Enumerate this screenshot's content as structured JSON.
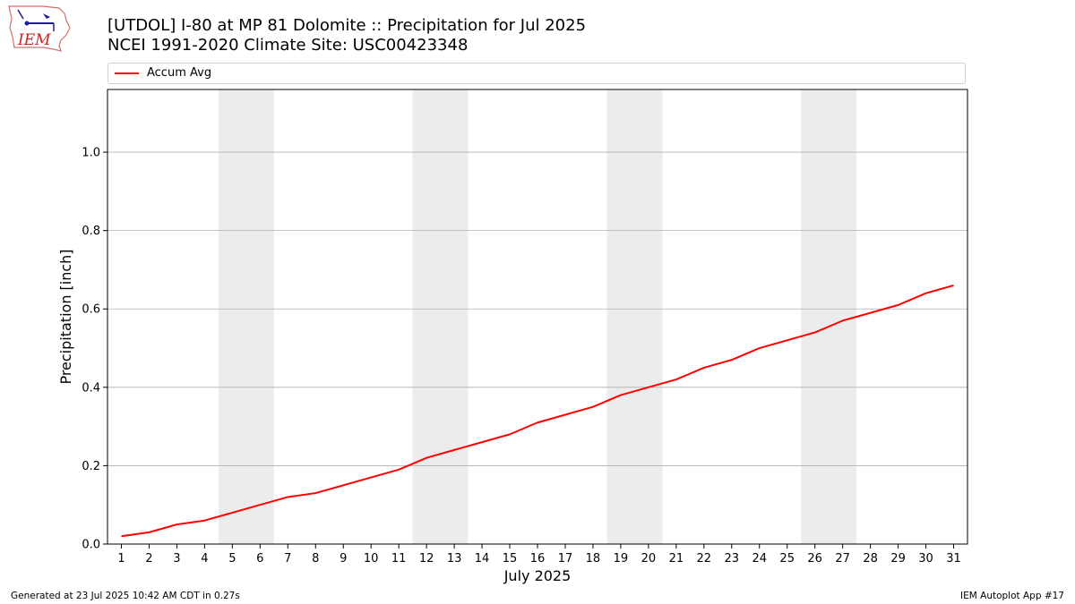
{
  "logo": {
    "text": "IEM"
  },
  "header": {
    "title_line1": "[UTDOL] I-80 at MP 81 Dolomite  :: Precipitation for Jul 2025",
    "title_line2": "NCEI 1991-2020 Climate Site: USC00423348"
  },
  "footer": {
    "left": "Generated at 23 Jul 2025 10:42 AM CDT in 0.27s",
    "right": "IEM Autoplot App #17"
  },
  "chart_data": {
    "type": "line",
    "title": "[UTDOL] I-80 at MP 81 Dolomite  :: Precipitation for Jul 2025",
    "subtitle": "NCEI 1991-2020 Climate Site: USC00423348",
    "xlabel": "July 2025",
    "ylabel": "Precipitation [inch]",
    "x": [
      1,
      2,
      3,
      4,
      5,
      6,
      7,
      8,
      9,
      10,
      11,
      12,
      13,
      14,
      15,
      16,
      17,
      18,
      19,
      20,
      21,
      22,
      23,
      24,
      25,
      26,
      27,
      28,
      29,
      30,
      31
    ],
    "xlim": [
      0.5,
      31.5
    ],
    "ylim": [
      0,
      1.16
    ],
    "yticks": [
      "0.0",
      "0.2",
      "0.4",
      "0.6",
      "0.8",
      "1.0"
    ],
    "ytick_values": [
      0,
      0.2,
      0.4,
      0.6,
      0.8,
      1.0
    ],
    "grid": "horizontal",
    "legend_placement": "top",
    "weekend_bands": [
      [
        4.5,
        6.5
      ],
      [
        11.5,
        13.5
      ],
      [
        18.5,
        20.5
      ],
      [
        25.5,
        27.5
      ]
    ],
    "series": [
      {
        "name": "Accum Avg",
        "color": "#ff0000",
        "values": [
          0.02,
          0.03,
          0.05,
          0.06,
          0.08,
          0.1,
          0.12,
          0.13,
          0.15,
          0.17,
          0.19,
          0.22,
          0.24,
          0.26,
          0.28,
          0.31,
          0.33,
          0.35,
          0.38,
          0.4,
          0.42,
          0.45,
          0.47,
          0.5,
          0.52,
          0.54,
          0.57,
          0.59,
          0.61,
          0.64,
          0.66
        ]
      }
    ]
  },
  "colors": {
    "band": "#ececec",
    "grid": "#b0b0b0",
    "line": "#ff0000"
  }
}
